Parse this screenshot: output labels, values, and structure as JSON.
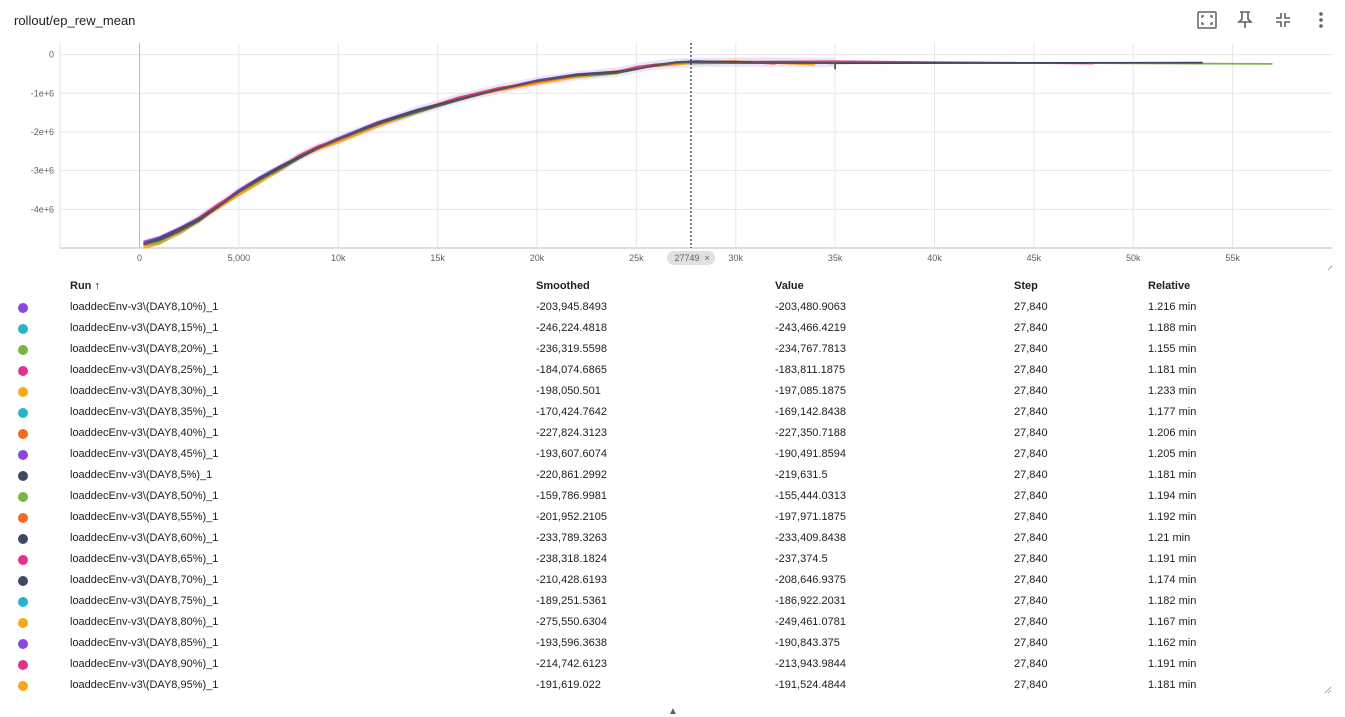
{
  "card": {
    "title": "rollout/ep_rew_mean"
  },
  "toolbar": [
    {
      "name": "fit-domain-icon"
    },
    {
      "name": "pin-icon"
    },
    {
      "name": "collapse-icon"
    },
    {
      "name": "more-vert-icon"
    }
  ],
  "hover": {
    "step_label": "27749",
    "close_glyph": "×"
  },
  "table": {
    "headers": {
      "run": "Run ↑",
      "smoothed": "Smoothed",
      "value": "Value",
      "step": "Step",
      "relative": "Relative"
    },
    "rows": [
      {
        "run": "loaddecEnv-v3\\(DAY8,10%)_1",
        "smoothed": "-203,945.8493",
        "value": "-203,480.9063",
        "step": "27,840",
        "relative": "1.216 min",
        "color": "#8e44e0"
      },
      {
        "run": "loaddecEnv-v3\\(DAY8,15%)_1",
        "smoothed": "-246,224.4818",
        "value": "-243,466.4219",
        "step": "27,840",
        "relative": "1.188 min",
        "color": "#26b4c9"
      },
      {
        "run": "loaddecEnv-v3\\(DAY8,20%)_1",
        "smoothed": "-236,319.5598",
        "value": "-234,767.7813",
        "step": "27,840",
        "relative": "1.155 min",
        "color": "#7cb342"
      },
      {
        "run": "loaddecEnv-v3\\(DAY8,25%)_1",
        "smoothed": "-184,074.6865",
        "value": "-183,811.1875",
        "step": "27,840",
        "relative": "1.181 min",
        "color": "#e0338e"
      },
      {
        "run": "loaddecEnv-v3\\(DAY8,30%)_1",
        "smoothed": "-198,050.501",
        "value": "-197,085.1875",
        "step": "27,840",
        "relative": "1.233 min",
        "color": "#f4a917"
      },
      {
        "run": "loaddecEnv-v3\\(DAY8,35%)_1",
        "smoothed": "-170,424.7642",
        "value": "-169,142.8438",
        "step": "27,840",
        "relative": "1.177 min",
        "color": "#26b4c9"
      },
      {
        "run": "loaddecEnv-v3\\(DAY8,40%)_1",
        "smoothed": "-227,824.3123",
        "value": "-227,350.7188",
        "step": "27,840",
        "relative": "1.206 min",
        "color": "#ef6c22"
      },
      {
        "run": "loaddecEnv-v3\\(DAY8,45%)_1",
        "smoothed": "-193,607.6074",
        "value": "-190,491.8594",
        "step": "27,840",
        "relative": "1.205 min",
        "color": "#8e44e0"
      },
      {
        "run": "loaddecEnv-v3\\(DAY8,5%)_1",
        "smoothed": "-220,861.2992",
        "value": "-219,631.5",
        "step": "27,840",
        "relative": "1.181 min",
        "color": "#3e4a5e"
      },
      {
        "run": "loaddecEnv-v3\\(DAY8,50%)_1",
        "smoothed": "-159,786.9981",
        "value": "-155,444.0313",
        "step": "27,840",
        "relative": "1.194 min",
        "color": "#7cb342"
      },
      {
        "run": "loaddecEnv-v3\\(DAY8,55%)_1",
        "smoothed": "-201,952.2105",
        "value": "-197,971.1875",
        "step": "27,840",
        "relative": "1.192 min",
        "color": "#ef6c22"
      },
      {
        "run": "loaddecEnv-v3\\(DAY8,60%)_1",
        "smoothed": "-233,789.3263",
        "value": "-233,409.8438",
        "step": "27,840",
        "relative": "1.21 min",
        "color": "#3e4a5e"
      },
      {
        "run": "loaddecEnv-v3\\(DAY8,65%)_1",
        "smoothed": "-238,318.1824",
        "value": "-237,374.5",
        "step": "27,840",
        "relative": "1.191 min",
        "color": "#e0338e"
      },
      {
        "run": "loaddecEnv-v3\\(DAY8,70%)_1",
        "smoothed": "-210,428.6193",
        "value": "-208,646.9375",
        "step": "27,840",
        "relative": "1.174 min",
        "color": "#3e4a5e"
      },
      {
        "run": "loaddecEnv-v3\\(DAY8,75%)_1",
        "smoothed": "-189,251.5361",
        "value": "-186,922.2031",
        "step": "27,840",
        "relative": "1.182 min",
        "color": "#26b4c9"
      },
      {
        "run": "loaddecEnv-v3\\(DAY8,80%)_1",
        "smoothed": "-275,550.6304",
        "value": "-249,461.0781",
        "step": "27,840",
        "relative": "1.167 min",
        "color": "#f4a917"
      },
      {
        "run": "loaddecEnv-v3\\(DAY8,85%)_1",
        "smoothed": "-193,596.3638",
        "value": "-190,843.375",
        "step": "27,840",
        "relative": "1.162 min",
        "color": "#8e44e0"
      },
      {
        "run": "loaddecEnv-v3\\(DAY8,90%)_1",
        "smoothed": "-214,742.6123",
        "value": "-213,943.9844",
        "step": "27,840",
        "relative": "1.191 min",
        "color": "#e0338e"
      },
      {
        "run": "loaddecEnv-v3\\(DAY8,95%)_1",
        "smoothed": "-191,619.022",
        "value": "-191,524.4844",
        "step": "27,840",
        "relative": "1.181 min",
        "color": "#f4a917"
      }
    ]
  },
  "chart_data": {
    "type": "line",
    "title": "",
    "xlabel": "",
    "ylabel": "",
    "xlim": [
      -4000,
      60000
    ],
    "ylim": [
      -5000000,
      300000
    ],
    "x_ticks": [
      {
        "v": 0,
        "label": "0"
      },
      {
        "v": 5000,
        "label": "5,000"
      },
      {
        "v": 10000,
        "label": "10k"
      },
      {
        "v": 15000,
        "label": "15k"
      },
      {
        "v": 20000,
        "label": "20k"
      },
      {
        "v": 25000,
        "label": "25k"
      },
      {
        "v": 30000,
        "label": "30k"
      },
      {
        "v": 35000,
        "label": "35k"
      },
      {
        "v": 40000,
        "label": "40k"
      },
      {
        "v": 45000,
        "label": "45k"
      },
      {
        "v": 50000,
        "label": "50k"
      },
      {
        "v": 55000,
        "label": "55k"
      }
    ],
    "y_ticks": [
      {
        "v": 0,
        "label": "0"
      },
      {
        "v": -1000000,
        "label": "-1e+6"
      },
      {
        "v": -2000000,
        "label": "-2e+6"
      },
      {
        "v": -3000000,
        "label": "-3e+6"
      },
      {
        "v": -4000000,
        "label": "-4e+6"
      }
    ],
    "grid": true,
    "hover_step": 27749,
    "base_curve": {
      "x": [
        200,
        1000,
        2000,
        3000,
        4000,
        5000,
        6000,
        7000,
        8000,
        9000,
        10000,
        12000,
        14000,
        16000,
        18000,
        20000,
        22000,
        24000,
        25000,
        26000,
        27000,
        28000,
        30000,
        35000
      ],
      "y": [
        -4900000,
        -4800000,
        -4550000,
        -4250000,
        -3900000,
        -3550000,
        -3250000,
        -2950000,
        -2650000,
        -2400000,
        -2200000,
        -1800000,
        -1450000,
        -1150000,
        -900000,
        -700000,
        -550000,
        -450000,
        -350000,
        -270000,
        -220000,
        -200000,
        -190000,
        -200000
      ]
    },
    "series": [
      {
        "color": "#8e44e0",
        "offset": 60000,
        "end_x": 37500,
        "end_y": -190000
      },
      {
        "color": "#26b4c9",
        "offset": -40000,
        "end_x": 38000,
        "end_y": -200000
      },
      {
        "color": "#7cb342",
        "offset": -60000,
        "end_x": 57000,
        "end_y": -240000
      },
      {
        "color": "#e0338e",
        "offset": 30000,
        "end_x": 48000,
        "end_y": -230000
      },
      {
        "color": "#f4a917",
        "offset": -80000,
        "end_x": 34000,
        "end_y": -260000
      },
      {
        "color": "#ef6c22",
        "offset": 0,
        "end_x": 32000,
        "end_y": -240000
      },
      {
        "color": "#3e4a5e",
        "offset": 20000,
        "end_x": 53500,
        "end_y": -210000
      },
      {
        "color": "#555555",
        "offset": -20000,
        "end_x": 35000,
        "end_y": -380000
      }
    ]
  }
}
